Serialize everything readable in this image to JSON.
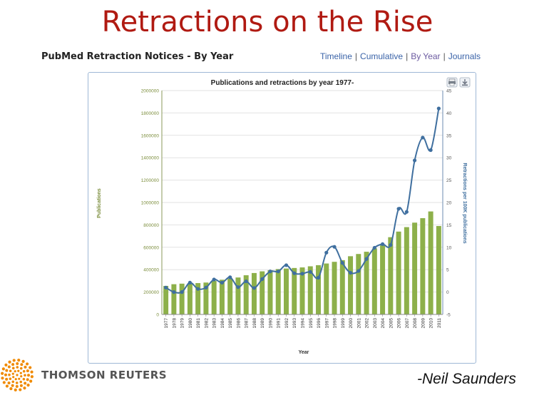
{
  "slide": {
    "title": "Retractions on the Rise",
    "credit": "-Neil Saunders"
  },
  "header": {
    "subtitle": "PubMed Retraction Notices - By Year"
  },
  "nav": {
    "items": [
      "Timeline",
      "Cumulative",
      "By Year",
      "Journals"
    ],
    "active": "By Year"
  },
  "brand": {
    "name": "THOMSON REUTERS"
  },
  "toolbar": {
    "print_icon": "print-icon",
    "download_icon": "download-icon"
  },
  "colors": {
    "bars": "#8db04a",
    "line": "#3f6f9f",
    "title_red": "#b01a12",
    "left_axis": "#7a8c3a",
    "right_axis": "#3f6f9f"
  },
  "chart_data": {
    "type": "bar",
    "title": "Publications and retractions by year 1977-",
    "xlabel": "Year",
    "ylabel": "Publications",
    "y2label": "Retractions per 100K publications",
    "ylim": [
      0,
      2000000
    ],
    "y2lim": [
      -5,
      45
    ],
    "yticks": [
      0,
      200000,
      400000,
      600000,
      800000,
      1000000,
      1200000,
      1400000,
      1600000,
      1800000,
      2000000
    ],
    "y2ticks": [
      -5,
      0,
      5,
      10,
      15,
      20,
      25,
      30,
      35,
      40,
      45
    ],
    "categories": [
      "1977",
      "1978",
      "1979",
      "1980",
      "1981",
      "1982",
      "1983",
      "1984",
      "1985",
      "1986",
      "1987",
      "1988",
      "1989",
      "1990",
      "1991",
      "1992",
      "1993",
      "1994",
      "1995",
      "1996",
      "1997",
      "1998",
      "1999",
      "2000",
      "2001",
      "2002",
      "2003",
      "2004",
      "2005",
      "2006",
      "2007",
      "2008",
      "2009",
      "2010",
      "2011"
    ],
    "series": [
      {
        "name": "Publications",
        "type": "bar",
        "values": [
          255000,
          270000,
          275000,
          280000,
          280000,
          285000,
          300000,
          310000,
          320000,
          330000,
          350000,
          370000,
          385000,
          395000,
          405000,
          410000,
          415000,
          420000,
          430000,
          440000,
          455000,
          470000,
          485000,
          520000,
          540000,
          560000,
          590000,
          620000,
          690000,
          740000,
          780000,
          820000,
          860000,
          920000,
          790000
        ]
      },
      {
        "name": "Retractions per 100K publications",
        "type": "line",
        "values": [
          1.0,
          0.0,
          0.0,
          2.1,
          0.7,
          1.0,
          2.8,
          2.1,
          3.3,
          1.1,
          2.4,
          0.9,
          2.9,
          4.6,
          4.6,
          6.0,
          4.2,
          4.1,
          4.5,
          3.2,
          8.8,
          10.1,
          6.5,
          4.3,
          4.7,
          7.4,
          9.9,
          10.7,
          10.5,
          18.6,
          17.9,
          29.4,
          34.5,
          31.7,
          41.0
        ]
      }
    ]
  }
}
